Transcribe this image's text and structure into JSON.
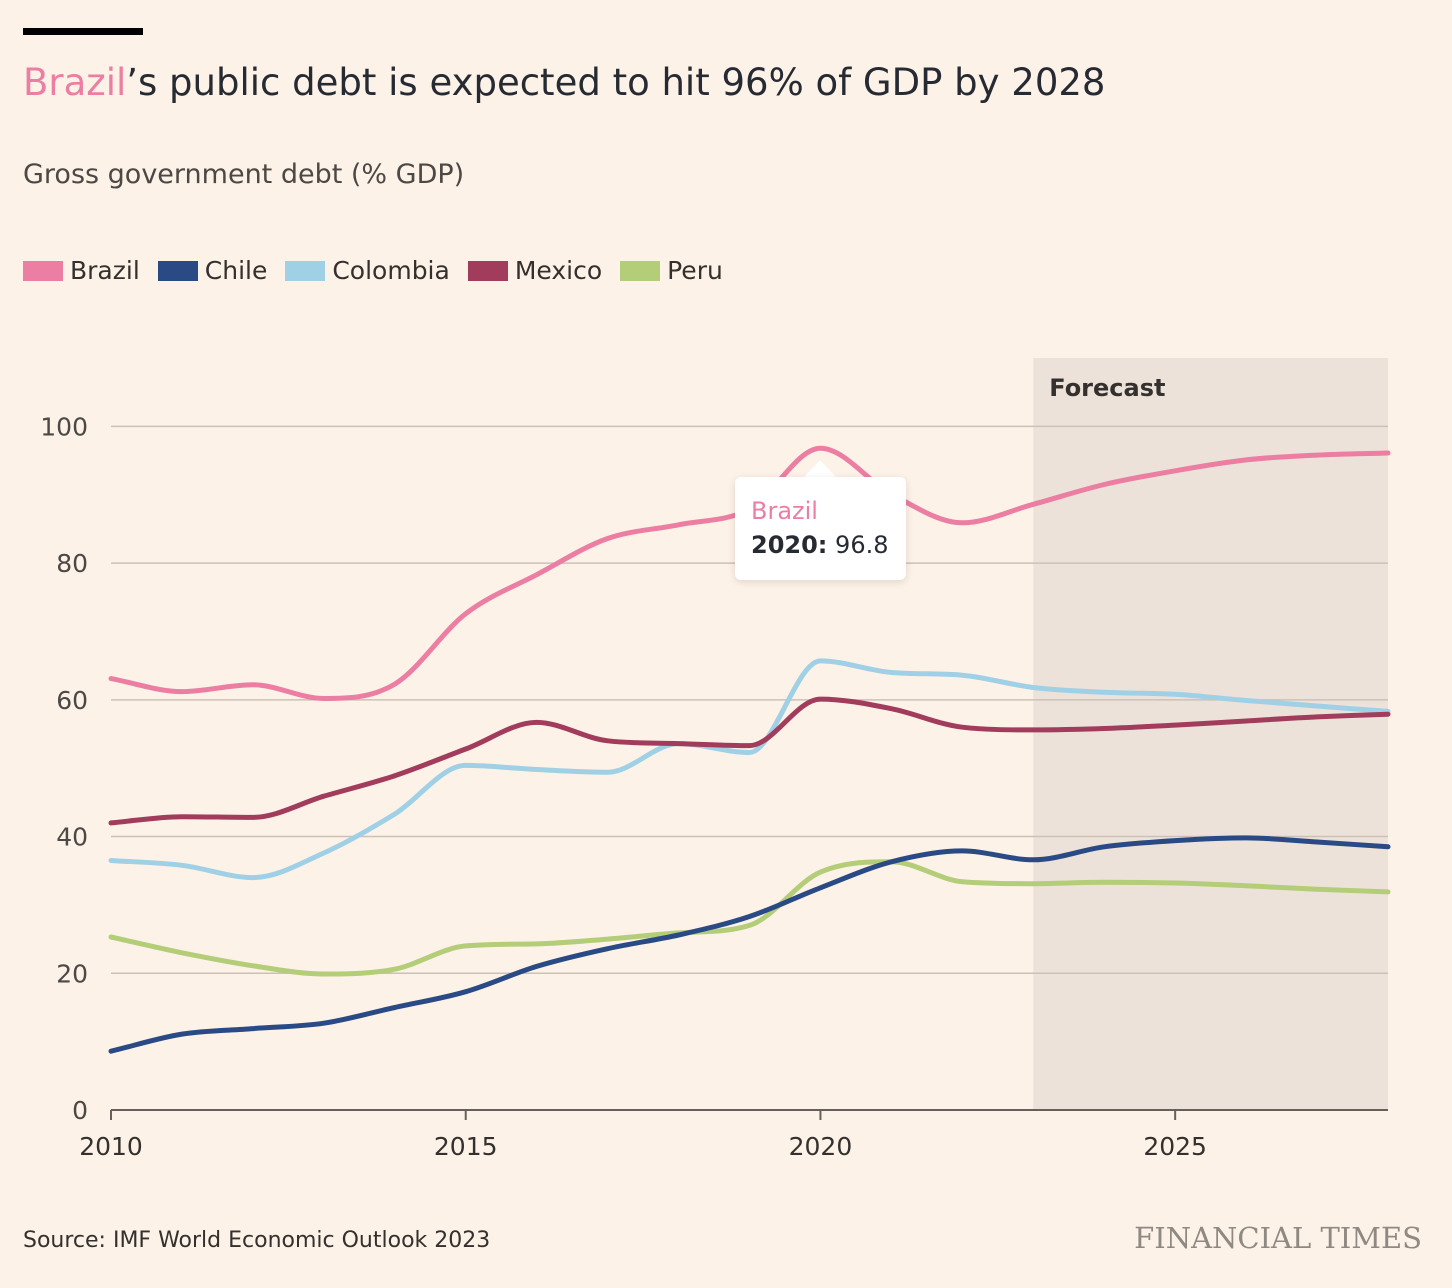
{
  "header": {
    "title_highlight": "Brazil",
    "title_rest": "’s public debt is expected to hit 96% of GDP by 2028",
    "subtitle": "Gross government debt (% GDP)"
  },
  "footer": {
    "source": "Source: IMF World Economic Outlook 2023",
    "brand": "FINANCIAL TIMES"
  },
  "tooltip": {
    "series": "Brazil",
    "year": "2020:",
    "value": "96.8"
  },
  "colors": {
    "background": "#fdf2e7",
    "forecast_band": "#ece2d9",
    "grid": "#ccc1b7",
    "highlight": "#eb7ea2"
  },
  "chart_data": {
    "type": "line",
    "title": "Brazil’s public debt is expected to hit 96% of GDP by 2028",
    "subtitle": "Gross government debt (% GDP)",
    "xlabel": "",
    "ylabel": "",
    "x": [
      2010,
      2011,
      2012,
      2013,
      2014,
      2015,
      2016,
      2017,
      2018,
      2019,
      2020,
      2021,
      2022,
      2023,
      2024,
      2025,
      2026,
      2027,
      2028
    ],
    "xlim": [
      2010,
      2028
    ],
    "ylim": [
      0,
      110
    ],
    "xticks": [
      2010,
      2015,
      2020,
      2025
    ],
    "xtick_labels": [
      "2010",
      "2015",
      "2020",
      "2025"
    ],
    "yticks": [
      0,
      20,
      40,
      60,
      80,
      100
    ],
    "ytick_labels": [
      "0",
      "20",
      "40",
      "60",
      "80",
      "100"
    ],
    "grid": true,
    "legend_position": "top-left",
    "forecast": {
      "label": "Forecast",
      "from": 2023,
      "to": 2028
    },
    "series": [
      {
        "name": "Brazil",
        "color": "#eb7ea2",
        "values": [
          63.1,
          61.2,
          62.2,
          60.2,
          62.3,
          72.6,
          78.3,
          83.6,
          85.6,
          87.9,
          96.8,
          90.1,
          85.9,
          88.6,
          91.5,
          93.5,
          95.1,
          95.8,
          96.1
        ]
      },
      {
        "name": "Chile",
        "color": "#2a4a85",
        "values": [
          8.6,
          11.1,
          11.9,
          12.7,
          15.0,
          17.3,
          21.0,
          23.6,
          25.6,
          28.3,
          32.5,
          36.3,
          37.9,
          36.6,
          38.5,
          39.4,
          39.8,
          39.2,
          38.5
        ]
      },
      {
        "name": "Colombia",
        "color": "#a0d0e6",
        "values": [
          36.5,
          35.8,
          34.0,
          37.6,
          43.3,
          50.4,
          49.8,
          49.4,
          53.6,
          52.3,
          65.7,
          64.0,
          63.6,
          61.8,
          61.1,
          60.8,
          59.9,
          59.1,
          58.3
        ]
      },
      {
        "name": "Mexico",
        "color": "#a23c5d",
        "values": [
          42.0,
          42.9,
          42.8,
          45.9,
          48.9,
          52.8,
          56.7,
          54.0,
          53.6,
          53.3,
          60.1,
          58.7,
          56.0,
          55.6,
          55.8,
          56.3,
          56.9,
          57.5,
          57.9
        ]
      },
      {
        "name": "Peru",
        "color": "#b3cd78",
        "values": [
          25.3,
          23.0,
          21.1,
          19.9,
          20.6,
          24.0,
          24.3,
          25.0,
          25.9,
          27.0,
          34.8,
          36.3,
          33.4,
          33.1,
          33.3,
          33.2,
          32.8,
          32.3,
          31.9
        ]
      }
    ]
  }
}
